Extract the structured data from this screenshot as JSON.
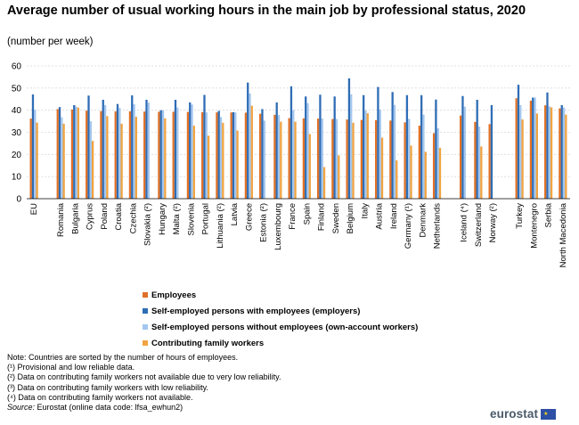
{
  "title": "Average number of usual working hours in the main job by professional status, 2020",
  "subtitle": "(number per week)",
  "chart_data": {
    "type": "bar",
    "ylim": [
      0,
      60
    ],
    "yticks": [
      0,
      10,
      20,
      30,
      40,
      50,
      60
    ],
    "grid": true,
    "legend_placement": "bottom",
    "colors": [
      "#e07126",
      "#2f6db5",
      "#a3c6ef",
      "#f1a441"
    ],
    "categories": [
      "EU",
      "Romania",
      "Bulgaria",
      "Cyprus",
      "Poland",
      "Croatia",
      "Czechia",
      "Slovakia (²)",
      "Hungary",
      "Malta (²)",
      "Slovenia",
      "Portugal",
      "Lithuania (²)",
      "Latvia",
      "Greece",
      "Estonia (²)",
      "Luxembourg",
      "France",
      "Spain",
      "Finland",
      "Sweden",
      "Belgium",
      "Italy",
      "Austria",
      "Ireland",
      "Germany (¹)",
      "Denmark",
      "Netherlands",
      "Iceland (⁴)",
      "Switzerland",
      "Norway (²)",
      "Turkey",
      "Montenegro",
      "Serbia",
      "North Macedonia"
    ],
    "groups": [
      1,
      27,
      3,
      4
    ],
    "series": [
      {
        "name": "Employees",
        "values": [
          36.2,
          40.5,
          40.3,
          39.8,
          39.6,
          39.5,
          39.5,
          39.4,
          39.3,
          39.3,
          39.2,
          39.1,
          39.0,
          39.0,
          38.9,
          38.4,
          37.9,
          36.4,
          36.3,
          36.2,
          36.0,
          35.8,
          35.6,
          35.5,
          35.3,
          34.5,
          33.0,
          29.6,
          37.6,
          34.7,
          33.7,
          45.4,
          44.3,
          42.2,
          40.8
        ]
      },
      {
        "name": "Self-employed persons with employees (employers)",
        "values": [
          47.1,
          41.4,
          42.3,
          46.6,
          44.7,
          42.8,
          46.7,
          44.7,
          40.0,
          44.7,
          43.5,
          46.9,
          39.7,
          39.1,
          52.5,
          40.5,
          43.5,
          50.8,
          46.2,
          47.0,
          46.2,
          54.4,
          46.8,
          50.5,
          48.2,
          46.8,
          46.8,
          44.8,
          46.4,
          44.7,
          42.3,
          51.5,
          45.7,
          48.0,
          42.3
        ]
      },
      {
        "name": "Self-employed persons without employees (own-account workers)",
        "values": [
          40.3,
          36.8,
          41.6,
          35.0,
          42.3,
          41.0,
          42.7,
          43.4,
          40.0,
          41.2,
          42.6,
          39.0,
          36.9,
          39.0,
          47.6,
          35.3,
          37.8,
          40.1,
          43.2,
          36.2,
          36.0,
          47.2,
          39.8,
          40.3,
          42.4,
          36.1,
          38.0,
          31.8,
          41.6,
          32.6,
          null,
          42.3,
          45.7,
          41.7,
          41.2
        ]
      },
      {
        "name": "Contributing family workers",
        "values": [
          34.4,
          33.9,
          41.2,
          26.1,
          37.3,
          33.9,
          37.0,
          null,
          36.3,
          null,
          33.0,
          28.5,
          34.3,
          30.8,
          42.0,
          null,
          34.8,
          34.8,
          29.2,
          14.3,
          19.6,
          34.3,
          38.6,
          27.6,
          17.3,
          24.0,
          21.2,
          23.0,
          null,
          23.6,
          null,
          35.8,
          38.5,
          41.3,
          38.0
        ]
      }
    ]
  },
  "notes": [
    {
      "text": "Note: Countries are sorted by the number of hours of employees."
    },
    {
      "text": "(¹) Provisional and low reliable data."
    },
    {
      "text": "(²) Data on contributing family workers not available due to very low reliability."
    },
    {
      "text": "(³) Data on contributing family workers with low reliability."
    },
    {
      "text": "(⁴) Data on contributing family workers not available."
    }
  ],
  "source": {
    "label": "Source:",
    "text": " Eurostat (online data code: lfsa_ewhun2)"
  },
  "logo": {
    "text": "eurostat",
    "flag_icon": "eu-flag-icon",
    "stars": "★"
  }
}
